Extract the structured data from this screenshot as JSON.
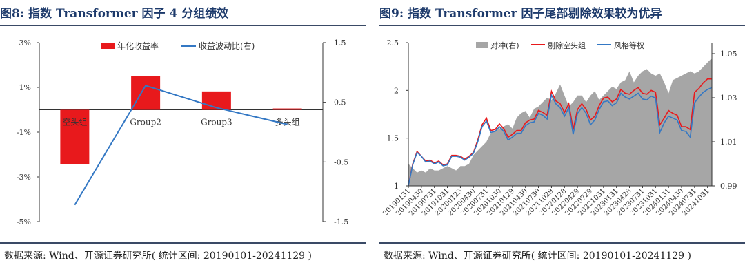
{
  "left": {
    "title": "图8:  指数 Transformer 因子 4 分组绩效",
    "source": "数据来源: Wind、开源证券研究所( 统计区间: 20190101-20241129 )"
  },
  "right": {
    "title": "图9:  指数 Transformer 因子尾部剔除效果较为优异",
    "source": "数据来源: Wind、开源证券研究所( 统计区间: 20190101-20241129 )"
  },
  "chart_data": [
    {
      "type": "bar",
      "title": "图8:  指数 Transformer 因子 4 分组绩效",
      "categories": [
        "空头组",
        "Group2",
        "Group3",
        "多头组"
      ],
      "series": [
        {
          "name": "年化收益率",
          "type": "bar",
          "axis": "left",
          "values": [
            -2.42,
            1.5,
            0.82,
            0.06
          ],
          "color": "#e8191c"
        },
        {
          "name": "收益波动比(右)",
          "type": "line",
          "axis": "right",
          "values": [
            -1.22,
            0.78,
            0.41,
            0.13
          ],
          "color": "#3478c4"
        }
      ],
      "y_left": {
        "ticks": [
          3,
          1,
          -1,
          -3,
          -5
        ],
        "tick_labels": [
          "3%",
          "1%",
          "-1%",
          "-3%",
          "-5%"
        ],
        "ylim": [
          -5,
          3
        ]
      },
      "y_right": {
        "ticks": [
          1.5,
          0.5,
          -0.5,
          -1.5
        ],
        "tick_labels": [
          "1.5",
          "0.5",
          "-0.5",
          "-1.5"
        ],
        "ylim": [
          -1.5,
          1.5
        ]
      },
      "legend": "top-center",
      "grid": false
    },
    {
      "type": "line",
      "title": "图9:  指数 Transformer 因子尾部剔除效果较为优异",
      "x": [
        "20190131",
        "20190228",
        "20190329",
        "20190430",
        "20190531",
        "20190628",
        "20190731",
        "20190830",
        "20190930",
        "20191031",
        "20191129",
        "20191231",
        "20200123",
        "20200228",
        "20200331",
        "20200430",
        "20200529",
        "20200630",
        "20200731",
        "20200831",
        "20200930",
        "20201030",
        "20201130",
        "20201231",
        "20210129",
        "20210226",
        "20210331",
        "20210430",
        "20210531",
        "20210630",
        "20210730",
        "20210831",
        "20210930",
        "20211029",
        "20211130",
        "20211231",
        "20220128",
        "20220228",
        "20220331",
        "20220429",
        "20220531",
        "20220630",
        "20220729",
        "20220831",
        "20220930",
        "20221031",
        "20221130",
        "20221230",
        "20230131",
        "20230228",
        "20230331",
        "20230428",
        "20230531",
        "20230630",
        "20230731",
        "20230831",
        "20230928",
        "20231031",
        "20231130",
        "20231229",
        "20240131",
        "20240229",
        "20240329",
        "20240430",
        "20240531",
        "20240628",
        "20240731",
        "20240830",
        "20240930",
        "20241031",
        "20241129"
      ],
      "x_tick_labels": [
        "20190131",
        "20190430",
        "20190731",
        "20191031",
        "20200123",
        "20200430",
        "20200731",
        "20201030",
        "20210129",
        "20210430",
        "20210730",
        "20211029",
        "20220128",
        "20220429",
        "20220729",
        "20221031",
        "20230131",
        "20230428",
        "20230731",
        "20231031",
        "20240131",
        "20240430",
        "20240731",
        "20241031"
      ],
      "series": [
        {
          "name": "对冲(右)",
          "type": "area",
          "axis": "right",
          "color": "#a6a6a6",
          "values": [
            1.0,
            0.998,
            0.996,
            0.997,
            0.996,
            0.998,
            0.997,
            0.997,
            0.998,
            0.999,
            0.998,
            0.997,
            0.999,
            0.999,
            1.0,
            1.004,
            1.006,
            1.008,
            1.01,
            1.014,
            1.015,
            1.016,
            1.017,
            1.018,
            1.016,
            1.021,
            1.023,
            1.024,
            1.021,
            1.025,
            1.026,
            1.028,
            1.03,
            1.029,
            1.032,
            1.036,
            1.031,
            1.026,
            1.028,
            1.031,
            1.031,
            1.028,
            1.031,
            1.033,
            1.029,
            1.031,
            1.033,
            1.035,
            1.034,
            1.037,
            1.038,
            1.042,
            1.037,
            1.04,
            1.042,
            1.043,
            1.041,
            1.04,
            1.041,
            1.037,
            1.032,
            1.038,
            1.039,
            1.04,
            1.041,
            1.042,
            1.041,
            1.042,
            1.044,
            1.046,
            1.048
          ]
        },
        {
          "name": "剔除空头组",
          "type": "line",
          "axis": "left",
          "color": "#e8191c",
          "values": [
            1.0,
            1.23,
            1.36,
            1.31,
            1.26,
            1.27,
            1.24,
            1.26,
            1.22,
            1.23,
            1.32,
            1.32,
            1.31,
            1.28,
            1.31,
            1.35,
            1.48,
            1.64,
            1.71,
            1.58,
            1.59,
            1.65,
            1.6,
            1.51,
            1.54,
            1.58,
            1.58,
            1.66,
            1.69,
            1.7,
            1.79,
            1.77,
            1.74,
            1.99,
            1.89,
            1.86,
            1.77,
            1.86,
            1.59,
            1.8,
            1.86,
            1.8,
            1.69,
            1.73,
            1.84,
            1.92,
            1.93,
            1.88,
            1.91,
            2.01,
            1.97,
            1.96,
            2.0,
            2.03,
            1.97,
            1.96,
            2.0,
            1.98,
            1.64,
            1.71,
            1.79,
            1.76,
            1.74,
            1.62,
            1.62,
            1.59,
            1.98,
            2.02,
            2.08,
            2.12,
            2.12
          ]
        },
        {
          "name": "风格等权",
          "type": "line",
          "axis": "left",
          "color": "#3478c4",
          "values": [
            1.0,
            1.22,
            1.35,
            1.31,
            1.25,
            1.26,
            1.23,
            1.25,
            1.21,
            1.22,
            1.31,
            1.31,
            1.3,
            1.27,
            1.3,
            1.34,
            1.46,
            1.62,
            1.68,
            1.56,
            1.57,
            1.62,
            1.57,
            1.48,
            1.51,
            1.55,
            1.55,
            1.63,
            1.66,
            1.67,
            1.76,
            1.74,
            1.7,
            1.95,
            1.86,
            1.82,
            1.73,
            1.82,
            1.54,
            1.76,
            1.82,
            1.76,
            1.64,
            1.69,
            1.8,
            1.88,
            1.89,
            1.84,
            1.87,
            1.97,
            1.93,
            1.91,
            1.94,
            1.97,
            1.91,
            1.9,
            1.94,
            1.92,
            1.56,
            1.66,
            1.73,
            1.71,
            1.69,
            1.58,
            1.57,
            1.51,
            1.87,
            1.93,
            1.98,
            2.01,
            2.03
          ]
        }
      ],
      "y_left": {
        "ticks": [
          1,
          1.5,
          2,
          2.5
        ],
        "tick_labels": [
          "1",
          "1.5",
          "2",
          "2.5"
        ],
        "ylim": [
          1,
          2.5
        ]
      },
      "y_right": {
        "ticks": [
          0.99,
          1.01,
          1.03,
          1.05
        ],
        "tick_labels": [
          "0.99",
          "1.01",
          "1.03",
          "1.05"
        ],
        "ylim": [
          0.99,
          1.055
        ]
      },
      "legend": "top-left",
      "grid": false
    }
  ]
}
